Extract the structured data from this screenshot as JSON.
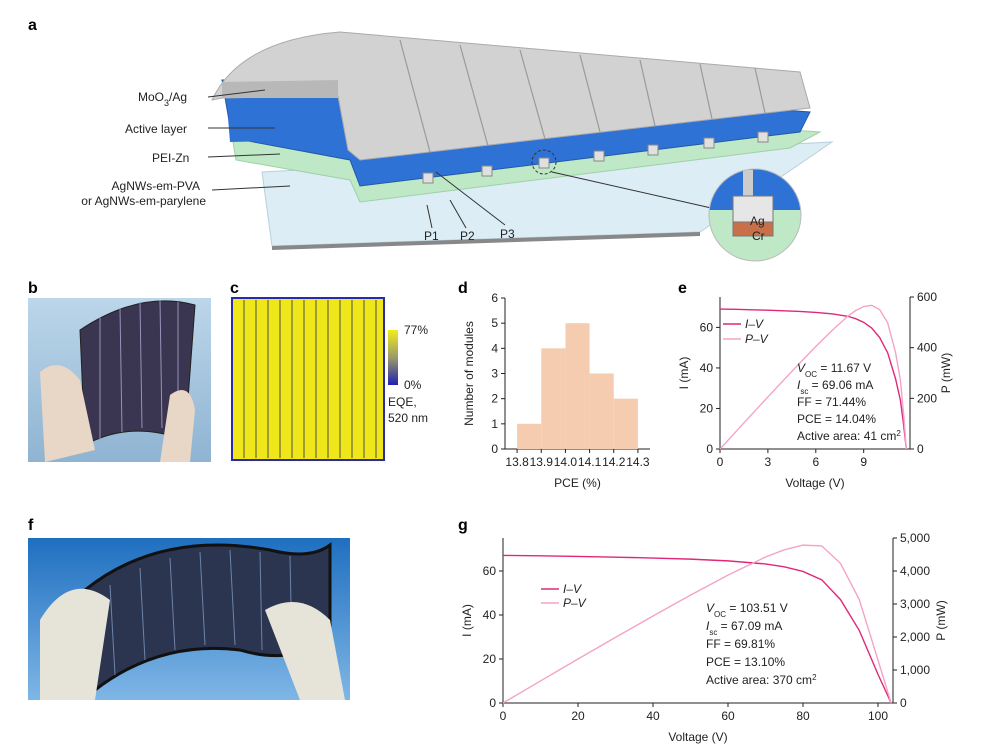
{
  "panels": [
    "a",
    "b",
    "c",
    "d",
    "e",
    "f",
    "g"
  ],
  "diagram": {
    "moo": {
      "main": "MoO",
      "sub": "3",
      "tail": "/Ag"
    },
    "active": "Active layer",
    "pei": "PEI-Zn",
    "agnw": [
      "AgNWs-em-PVA",
      "or AgNWs-em-parylene"
    ],
    "scribes": [
      "P1",
      "P2",
      "P3"
    ],
    "inset": [
      "Ag",
      "Cr"
    ]
  },
  "eqe_map": {
    "colorbar_max": "77%",
    "colorbar_min": "0%",
    "label": [
      "EQE,",
      "520 nm"
    ]
  },
  "chart_data": [
    {
      "type": "histogram",
      "xlabel": "PCE (%)",
      "ylabel": "Number of modules",
      "bins": [
        13.8,
        13.9,
        14.0,
        14.1,
        14.2,
        14.3
      ],
      "values": [
        1,
        4,
        5,
        3,
        2
      ],
      "color": "#f5ccb0",
      "xlim": [
        13.75,
        14.35
      ],
      "xticks": [
        13.8,
        13.9,
        {
          "value": 14.0,
          "label": "14.0"
        },
        14.1,
        14.2,
        14.3
      ],
      "ylim": [
        0,
        6
      ],
      "yticks": [
        0,
        1,
        2,
        3,
        4,
        5,
        6
      ]
    },
    {
      "type": "line",
      "xlabel": "Voltage (V)",
      "ylabel": "I (mA)",
      "y2label": "P (mW)",
      "x": [
        0,
        1,
        2,
        3,
        4,
        5,
        6,
        7,
        8,
        8.5,
        9,
        9.5,
        10,
        10.5,
        11,
        11.3,
        11.5,
        11.67
      ],
      "series": [
        {
          "name": "I–V",
          "color": "#e0287a",
          "values": [
            69.06,
            68.9,
            68.7,
            68.5,
            68.2,
            67.9,
            67.4,
            66.7,
            65.5,
            64.3,
            62.5,
            59.7,
            55.0,
            47.5,
            34.5,
            24.0,
            12.0,
            0
          ]
        },
        {
          "name": "P–V",
          "color": "#f4a3c8",
          "axis": "y2",
          "values": [
            0,
            68.9,
            137.4,
            205.5,
            272.8,
            339.5,
            404.4,
            466.9,
            524,
            546.6,
            562.5,
            567.2,
            550,
            498.8,
            379.5,
            271.2,
            138,
            0
          ]
        }
      ],
      "xlim": [
        0,
        11.9
      ],
      "xticks": [
        0,
        3,
        6,
        9
      ],
      "ylim": [
        0,
        75
      ],
      "yticks": [
        0,
        20,
        40,
        60
      ],
      "y2lim": [
        0,
        600
      ],
      "y2ticks": [
        0,
        200,
        400,
        600
      ],
      "annotations": [
        {
          "var": "V",
          "sub": "OC",
          "text": " = 11.67 V"
        },
        {
          "var": "I",
          "sub": "sc",
          "text": " = 69.06 mA"
        },
        {
          "text": "FF = 71.44%"
        },
        {
          "text": "PCE = 14.04%"
        },
        {
          "text": "Active area: 41 cm",
          "sup": "2"
        }
      ]
    },
    {
      "type": "line",
      "xlabel": "Voltage (V)",
      "ylabel": "I (mA)",
      "y2label": "P (mW)",
      "x": [
        0,
        10,
        20,
        30,
        40,
        50,
        60,
        70,
        75,
        80,
        85,
        90,
        95,
        100,
        103.51
      ],
      "series": [
        {
          "name": "I–V",
          "color": "#e0287a",
          "values": [
            67.09,
            66.9,
            66.6,
            66.3,
            65.9,
            65.4,
            64.6,
            63.2,
            61.9,
            59.8,
            56.0,
            47.0,
            33.0,
            13.0,
            0
          ]
        },
        {
          "name": "P–V",
          "color": "#f4a3c8",
          "axis": "y2",
          "values": [
            0,
            669,
            1332,
            1989,
            2636,
            3270,
            3876,
            4424,
            4642.5,
            4784,
            4760,
            4230,
            3135,
            1300,
            0
          ]
        }
      ],
      "xlim": [
        0,
        104
      ],
      "xticks": [
        0,
        20,
        40,
        60,
        80,
        100
      ],
      "ylim": [
        0,
        75
      ],
      "yticks": [
        0,
        20,
        40,
        60
      ],
      "y2lim": [
        0,
        5000
      ],
      "y2ticks": [
        0,
        {
          "value": 1000,
          "label": "1,000"
        },
        {
          "value": 2000,
          "label": "2,000"
        },
        {
          "value": 3000,
          "label": "3,000"
        },
        {
          "value": 4000,
          "label": "4,000"
        },
        {
          "value": 5000,
          "label": "5,000"
        }
      ],
      "annotations": [
        {
          "var": "V",
          "sub": "OC",
          "text": " = 103.51 V"
        },
        {
          "var": "I",
          "sub": "sc",
          "text": " = 67.09 mA"
        },
        {
          "text": "FF = 69.81%"
        },
        {
          "text": "PCE = 13.10%"
        },
        {
          "text": "Active area: 370 cm",
          "sup": "2"
        }
      ]
    }
  ]
}
